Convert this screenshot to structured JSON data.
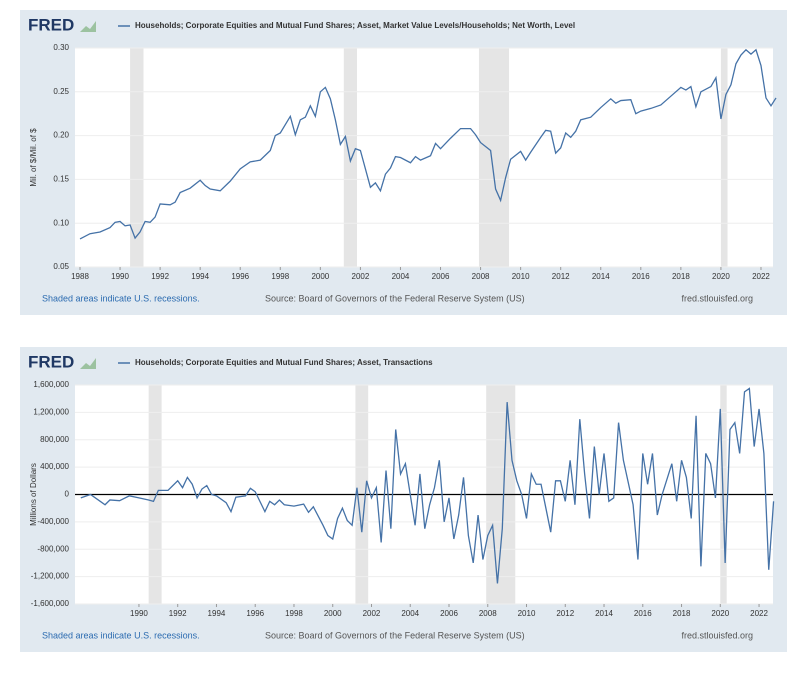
{
  "chart_data": [
    {
      "type": "line",
      "logo": "FRED",
      "ylabel": "Mil. of $/Mil. of $",
      "footer_left": "Shaded areas indicate U.S. recessions.",
      "footer_center": "Source: Board of Governors of the Federal Reserve System (US)",
      "footer_right": "fred.stlouisfed.org",
      "xlim": [
        1987.75,
        2022.6
      ],
      "xticks": [
        1988,
        1990,
        1992,
        1994,
        1996,
        1998,
        2000,
        2002,
        2004,
        2006,
        2008,
        2010,
        2012,
        2014,
        2016,
        2018,
        2020,
        2022
      ],
      "ylim": [
        0.05,
        0.3
      ],
      "yticks": [
        {
          "value": 0.05,
          "label": "0.05"
        },
        {
          "value": 0.1,
          "label": "0.10"
        },
        {
          "value": 0.15,
          "label": "0.15"
        },
        {
          "value": 0.2,
          "label": "0.20"
        },
        {
          "value": 0.25,
          "label": "0.25"
        },
        {
          "value": 0.3,
          "label": "0.30"
        }
      ],
      "grid": true,
      "zero_line": false,
      "recessions": [
        [
          1990.5,
          1991.17
        ],
        [
          2001.17,
          2001.83
        ],
        [
          2007.92,
          2009.42
        ],
        [
          2020.0,
          2020.33
        ]
      ],
      "x": [
        1988.0,
        1988.5,
        1989.0,
        1989.5,
        1989.75,
        1990.0,
        1990.25,
        1990.5,
        1990.75,
        1991.0,
        1991.25,
        1991.5,
        1991.75,
        1992.0,
        1992.5,
        1992.75,
        1993.0,
        1993.5,
        1994.0,
        1994.25,
        1994.5,
        1995.0,
        1995.5,
        1996.0,
        1996.5,
        1997.0,
        1997.5,
        1997.75,
        1998.0,
        1998.5,
        1998.75,
        1999.0,
        1999.25,
        1999.5,
        1999.75,
        2000.0,
        2000.25,
        2000.5,
        2000.75,
        2001.0,
        2001.25,
        2001.5,
        2001.75,
        2002.0,
        2002.5,
        2002.75,
        2003.0,
        2003.25,
        2003.5,
        2003.75,
        2004.0,
        2004.5,
        2004.75,
        2005.0,
        2005.5,
        2005.75,
        2006.0,
        2006.5,
        2007.0,
        2007.5,
        2007.75,
        2008.0,
        2008.5,
        2008.75,
        2009.0,
        2009.25,
        2009.5,
        2010.0,
        2010.25,
        2010.5,
        2011.0,
        2011.25,
        2011.5,
        2011.75,
        2012.0,
        2012.25,
        2012.5,
        2012.75,
        2013.0,
        2013.5,
        2014.0,
        2014.5,
        2014.75,
        2015.0,
        2015.5,
        2015.75,
        2016.0,
        2016.5,
        2017.0,
        2017.5,
        2018.0,
        2018.25,
        2018.5,
        2018.75,
        2019.0,
        2019.5,
        2019.75,
        2020.0,
        2020.25,
        2020.5,
        2020.75,
        2021.0,
        2021.25,
        2021.5,
        2021.75,
        2022.0,
        2022.25,
        2022.5,
        2022.75
      ],
      "series": [
        {
          "name": "Households; Corporate Equities and Mutual Fund Shares; Asset, Market Value Levels/Households; Net Worth, Level",
          "color": "#4572a7",
          "values": [
            0.082,
            0.088,
            0.09,
            0.095,
            0.101,
            0.102,
            0.097,
            0.098,
            0.083,
            0.09,
            0.102,
            0.101,
            0.107,
            0.122,
            0.121,
            0.124,
            0.135,
            0.14,
            0.149,
            0.143,
            0.139,
            0.137,
            0.148,
            0.162,
            0.17,
            0.172,
            0.183,
            0.2,
            0.203,
            0.222,
            0.201,
            0.218,
            0.221,
            0.234,
            0.222,
            0.25,
            0.255,
            0.242,
            0.218,
            0.19,
            0.199,
            0.171,
            0.185,
            0.183,
            0.141,
            0.146,
            0.137,
            0.156,
            0.163,
            0.176,
            0.175,
            0.169,
            0.176,
            0.172,
            0.177,
            0.191,
            0.185,
            0.197,
            0.208,
            0.208,
            0.201,
            0.192,
            0.183,
            0.139,
            0.126,
            0.152,
            0.173,
            0.182,
            0.172,
            0.181,
            0.198,
            0.206,
            0.205,
            0.18,
            0.186,
            0.203,
            0.198,
            0.205,
            0.218,
            0.221,
            0.232,
            0.242,
            0.237,
            0.24,
            0.241,
            0.225,
            0.228,
            0.231,
            0.235,
            0.245,
            0.255,
            0.252,
            0.256,
            0.233,
            0.25,
            0.256,
            0.266,
            0.219,
            0.247,
            0.258,
            0.282,
            0.292,
            0.298,
            0.293,
            0.298,
            0.28,
            0.243,
            0.234,
            0.243
          ]
        }
      ]
    },
    {
      "type": "line",
      "logo": "FRED",
      "ylabel": "Millions of Dollars",
      "footer_left": "Shaded areas indicate U.S. recessions.",
      "footer_center": "Source: Board of Governors of the Federal Reserve System (US)",
      "footer_right": "fred.stlouisfed.org",
      "xlim": [
        1986.7,
        2022.72
      ],
      "xticks": [
        1990,
        1992,
        1994,
        1996,
        1998,
        2000,
        2002,
        2004,
        2006,
        2008,
        2010,
        2012,
        2014,
        2016,
        2018,
        2020,
        2022
      ],
      "ylim": [
        -1600000,
        1600000
      ],
      "yticks": [
        {
          "value": -1600000,
          "label": "-1,600,000"
        },
        {
          "value": -1200000,
          "label": "-1,200,000"
        },
        {
          "value": -800000,
          "label": "-800,000"
        },
        {
          "value": -400000,
          "label": "-400,000"
        },
        0,
        {
          "value": 400000,
          "label": "400,000"
        },
        {
          "value": 800000,
          "label": "800,000"
        },
        {
          "value": 1200000,
          "label": "1,200,000"
        },
        {
          "value": 1600000,
          "label": "1,600,000"
        }
      ],
      "grid": true,
      "zero_line": true,
      "recessions": [
        [
          1990.5,
          1991.17
        ],
        [
          2001.17,
          2001.83
        ],
        [
          2007.92,
          2009.42
        ],
        [
          2020.0,
          2020.33
        ]
      ],
      "x": [
        1987.0,
        1987.5,
        1988.0,
        1988.25,
        1988.5,
        1989.0,
        1989.5,
        1990.0,
        1990.5,
        1990.75,
        1991.0,
        1991.5,
        1992.0,
        1992.25,
        1992.5,
        1992.75,
        1993.0,
        1993.25,
        1993.5,
        1993.75,
        1994.0,
        1994.5,
        1994.75,
        1995.0,
        1995.5,
        1995.75,
        1996.0,
        1996.5,
        1996.75,
        1997.0,
        1997.25,
        1997.5,
        1998.0,
        1998.5,
        1998.75,
        1999.0,
        1999.5,
        1999.75,
        2000.0,
        2000.25,
        2000.5,
        2000.75,
        2001.0,
        2001.25,
        2001.5,
        2001.75,
        2002.0,
        2002.25,
        2002.5,
        2002.75,
        2003.0,
        2003.25,
        2003.5,
        2003.75,
        2004.0,
        2004.25,
        2004.5,
        2004.75,
        2005.0,
        2005.25,
        2005.5,
        2005.75,
        2006.0,
        2006.25,
        2006.5,
        2006.75,
        2007.0,
        2007.25,
        2007.5,
        2007.75,
        2008.0,
        2008.25,
        2008.5,
        2008.75,
        2009.0,
        2009.25,
        2009.5,
        2009.75,
        2010.0,
        2010.25,
        2010.5,
        2010.75,
        2011.0,
        2011.25,
        2011.5,
        2011.75,
        2012.0,
        2012.25,
        2012.5,
        2012.75,
        2013.0,
        2013.25,
        2013.5,
        2013.75,
        2014.0,
        2014.25,
        2014.5,
        2014.75,
        2015.0,
        2015.5,
        2015.75,
        2016.0,
        2016.25,
        2016.5,
        2016.75,
        2017.0,
        2017.5,
        2017.75,
        2018.0,
        2018.25,
        2018.5,
        2018.75,
        2019.0,
        2019.25,
        2019.5,
        2019.75,
        2020.0,
        2020.25,
        2020.5,
        2020.75,
        2021.0,
        2021.25,
        2021.5,
        2021.75,
        2022.0,
        2022.25,
        2022.5,
        2022.75
      ],
      "series": [
        {
          "name": "Households; Corporate Equities and Mutual Fund Shares; Asset, Transactions",
          "color": "#4572a7",
          "values": [
            -50000,
            0,
            -100000,
            -150000,
            -80000,
            -90000,
            -20000,
            -50000,
            -80000,
            -100000,
            60000,
            60000,
            200000,
            100000,
            250000,
            150000,
            -50000,
            80000,
            130000,
            0,
            -20000,
            -120000,
            -250000,
            -40000,
            -20000,
            90000,
            40000,
            -250000,
            -100000,
            -150000,
            -80000,
            -150000,
            -170000,
            -140000,
            -260000,
            -180000,
            -450000,
            -600000,
            -650000,
            -350000,
            -200000,
            -380000,
            -450000,
            100000,
            -550000,
            200000,
            -50000,
            100000,
            -700000,
            350000,
            -500000,
            950000,
            300000,
            450000,
            0,
            -450000,
            300000,
            -500000,
            -150000,
            100000,
            500000,
            -400000,
            -50000,
            -650000,
            -300000,
            250000,
            -600000,
            -1000000,
            -300000,
            -950000,
            -600000,
            -450000,
            -1300000,
            -500000,
            1350000,
            500000,
            200000,
            0,
            -350000,
            300000,
            150000,
            150000,
            -200000,
            -550000,
            200000,
            200000,
            -100000,
            500000,
            -150000,
            1100000,
            300000,
            -350000,
            700000,
            0,
            600000,
            -100000,
            -50000,
            1050000,
            500000,
            -150000,
            -950000,
            600000,
            150000,
            600000,
            -300000,
            0,
            450000,
            -100000,
            500000,
            250000,
            -350000,
            1150000,
            -1050000,
            600000,
            450000,
            -50000,
            1250000,
            -1000000,
            950000,
            1050000,
            600000,
            1500000,
            1550000,
            700000,
            1250000,
            600000,
            -1100000,
            -100000
          ]
        }
      ]
    }
  ]
}
